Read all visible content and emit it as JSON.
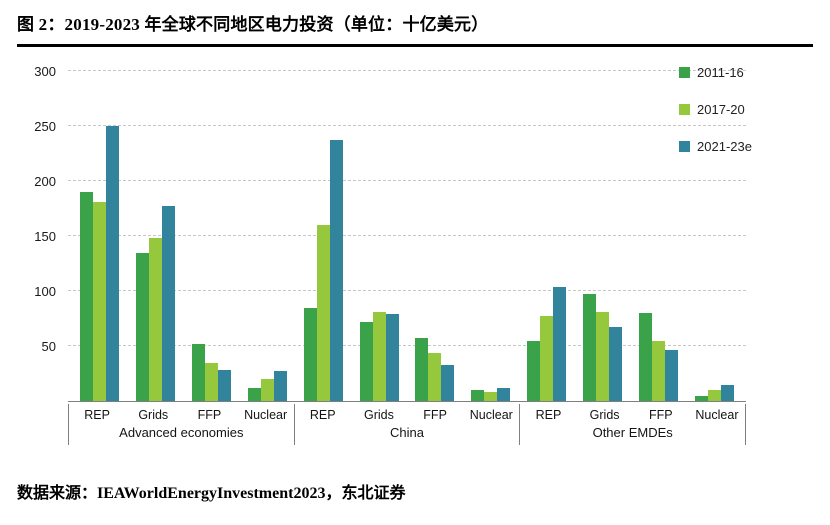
{
  "title": "图 2：2019-2023 年全球不同地区电力投资（单位：十亿美元）",
  "source": "数据来源：IEAWorldEnergyInvestment2023，东北证券",
  "colors": {
    "series_green": "#3aa34a",
    "series_yellowgreen": "#96c83e",
    "series_teal": "#31849b",
    "axis": "#7f7f7f",
    "grid": "#c7c7c7"
  },
  "chart_data": {
    "type": "bar",
    "title": "图 2：2019-2023 年全球不同地区电力投资（单位：十亿美元）",
    "xlabel": "",
    "ylabel": "",
    "ylim": [
      0,
      300
    ],
    "yticks": [
      50,
      100,
      150,
      200,
      250,
      300
    ],
    "grid": true,
    "gridline_style": "dashed",
    "legend_position": "top-right",
    "groups": [
      "Advanced economies",
      "China",
      "Other EMDEs"
    ],
    "categories": [
      "REP",
      "Grids",
      "FFP",
      "Nuclear"
    ],
    "series": [
      {
        "name": "2011-16",
        "color": "#3aa34a",
        "values": [
          [
            190,
            135,
            52,
            12
          ],
          [
            85,
            72,
            57,
            10
          ],
          [
            55,
            97,
            80,
            5
          ]
        ]
      },
      {
        "name": "2017-20",
        "color": "#96c83e",
        "values": [
          [
            181,
            148,
            35,
            20
          ],
          [
            160,
            81,
            44,
            8
          ],
          [
            77,
            81,
            55,
            10
          ]
        ]
      },
      {
        "name": "2021-23e",
        "color": "#31849b",
        "values": [
          [
            250,
            177,
            28,
            27
          ],
          [
            237,
            79,
            33,
            12
          ],
          [
            104,
            67,
            46,
            15
          ]
        ]
      }
    ]
  }
}
